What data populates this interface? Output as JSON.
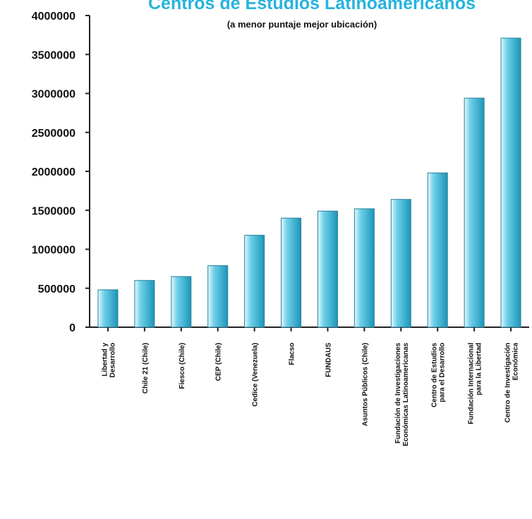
{
  "chart_data": {
    "type": "bar",
    "title": "Centros de Estudios Latinoamericanos",
    "subtitle": "(a menor puntaje mejor ubicación)",
    "ylim": [
      0,
      4000000
    ],
    "yticks": [
      "0",
      "500000",
      "1000000",
      "1500000",
      "2000000",
      "2500000",
      "3000000",
      "3500000",
      "4000000"
    ],
    "categories": [
      [
        "Libertad y",
        "Desarrollo"
      ],
      [
        "Chile 21 (Chile)"
      ],
      [
        "Fiesco (Chile)"
      ],
      [
        "CEP (Chile)"
      ],
      [
        "Cedice (Venezuela)"
      ],
      [
        "Flacso"
      ],
      [
        "FUNDAUS"
      ],
      [
        "Asuntos Públicos (Chile)"
      ],
      [
        "Fundación de Investigaciones",
        "Económicas Latinoamericanas"
      ],
      [
        "Centro de Estudios",
        "para el Desarrollo"
      ],
      [
        "Fundación Internacional",
        "para la Libertad"
      ],
      [
        "Centro de Investigación",
        "Económica"
      ]
    ],
    "values": [
      480000,
      600000,
      650000,
      790000,
      1180000,
      1400000,
      1490000,
      1520000,
      1640000,
      1980000,
      2940000,
      3710000
    ],
    "colors": {
      "bar_light": "#e6f8fd",
      "bar_mid": "#6fd0ea",
      "bar_dark": "#1c95b8",
      "title": "#27b3de"
    }
  }
}
